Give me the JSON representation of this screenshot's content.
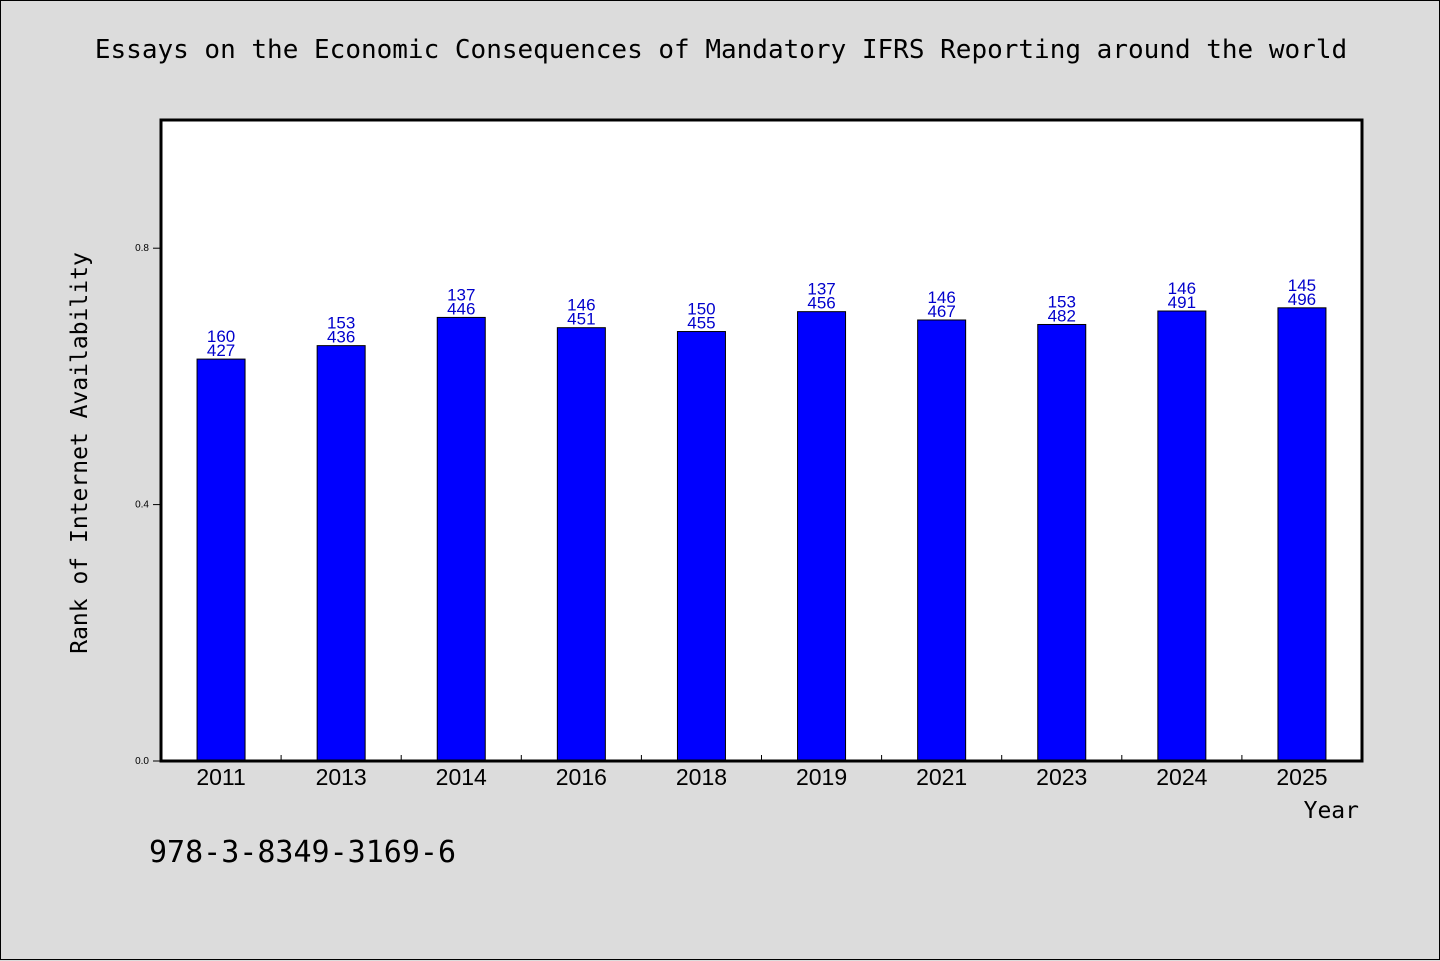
{
  "chart_data": {
    "type": "bar",
    "title": "Essays on the Economic Consequences of Mandatory IFRS Reporting around the world",
    "xlabel": "Year",
    "ylabel": "Rank of Internet Availability",
    "categories": [
      "2011",
      "2013",
      "2014",
      "2016",
      "2018",
      "2019",
      "2021",
      "2023",
      "2024",
      "2025"
    ],
    "values": [
      0.627,
      0.648,
      0.692,
      0.676,
      0.67,
      0.701,
      0.688,
      0.681,
      0.702,
      0.707
    ],
    "data_labels": [
      [
        "160",
        "427"
      ],
      [
        "153",
        "436"
      ],
      [
        "137",
        "446"
      ],
      [
        "146",
        "451"
      ],
      [
        "150",
        "455"
      ],
      [
        "137",
        "456"
      ],
      [
        "146",
        "467"
      ],
      [
        "153",
        "482"
      ],
      [
        "146",
        "491"
      ],
      [
        "145",
        "496"
      ]
    ],
    "ylim": [
      0,
      1.0
    ],
    "yticks": [
      0.0,
      0.4,
      0.8
    ],
    "ytick_labels": [
      "0.0",
      "0.4",
      "0.8"
    ],
    "grid": false,
    "bar_color": "#0000ff",
    "label_color": "#0000cc",
    "background": "#dcdcdc"
  },
  "footer": {
    "isbn": "978-3-8349-3169-6"
  }
}
